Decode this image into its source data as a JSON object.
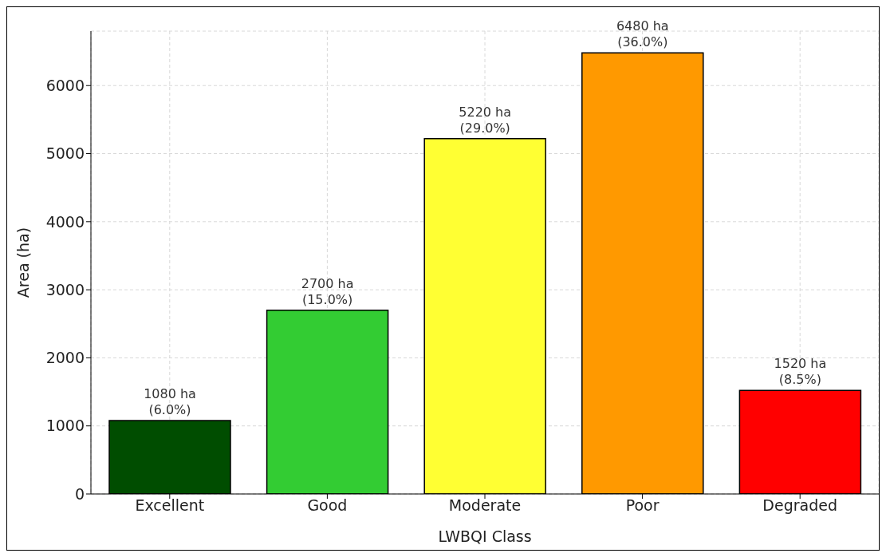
{
  "chart_data": {
    "type": "bar",
    "xlabel": "LWBQI Class",
    "ylabel": "Area (ha)",
    "categories": [
      "Excellent",
      "Good",
      "Moderate",
      "Poor",
      "Degraded"
    ],
    "values": [
      1080,
      2700,
      5220,
      6480,
      1520
    ],
    "colors": [
      "#004d00",
      "#33cc33",
      "#ffff33",
      "#ff9900",
      "#ff0000"
    ],
    "value_labels": [
      "1080 ha\n(6.0%)",
      "2700 ha\n(15.0%)",
      "5220 ha\n(29.0%)",
      "6480 ha\n(36.0%)",
      "1520 ha\n(8.5%)"
    ],
    "ylim": [
      0,
      6800
    ],
    "yticks": [
      0,
      1000,
      2000,
      3000,
      4000,
      5000,
      6000
    ],
    "grid": true
  }
}
